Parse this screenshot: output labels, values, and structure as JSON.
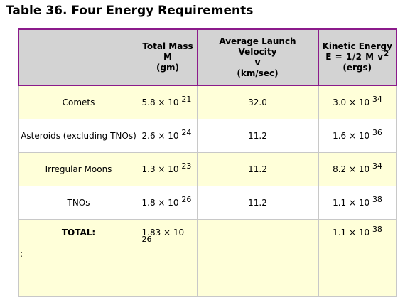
{
  "title": "Table 36. Four Energy Requirements",
  "headers": {
    "col0": "",
    "col1": [
      "Total Mass",
      "M",
      "(gm)"
    ],
    "col2": [
      "Average Launch Velocity",
      "v",
      "(km/sec)"
    ],
    "col3_line1": "Kinetic Energy",
    "col3_eq": "E  =  1/2 M  v",
    "col3_eq_sup": "2",
    "col3_line3": "(ergs)"
  },
  "rows": [
    {
      "name": "Comets",
      "mass_base": "5.8 × 10",
      "mass_exp": "21",
      "velocity": "32.0",
      "energy_base": "3.0 × 10",
      "energy_exp": "34"
    },
    {
      "name": "Asteroids (excluding TNOs)",
      "mass_base": "2.6 × 10",
      "mass_exp": "24",
      "velocity": "11.2",
      "energy_base": "1.6 × 10",
      "energy_exp": "36"
    },
    {
      "name": "Irregular Moons",
      "mass_base": "1.3 × 10",
      "mass_exp": "23",
      "velocity": "11.2",
      "energy_base": "8.2 × 10",
      "energy_exp": "34"
    },
    {
      "name": "TNOs",
      "mass_base": "1.8 × 10",
      "mass_exp": "26",
      "velocity": "11.2",
      "energy_base": "1.1 × 10",
      "energy_exp": "38"
    }
  ],
  "total": {
    "label": "TOTAL:",
    "mass_base": "1.83 × 10",
    "mass_exp": "26",
    "velocity": "",
    "energy_base": "1.1 × 10",
    "energy_exp": "38"
  },
  "stray_mark": ":",
  "colors": {
    "header_bg": "#d3d3d3",
    "header_border": "#8b1a8b",
    "row_shade": "#ffffd9"
  }
}
